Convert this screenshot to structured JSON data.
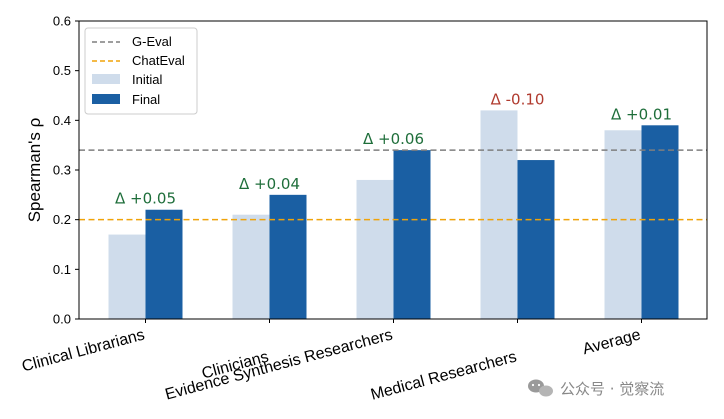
{
  "chart_data": {
    "type": "bar",
    "categories": [
      "Clinical Librarians",
      "Clinicians",
      "Evidence Synthesis Researchers",
      "Medical Researchers",
      "Average"
    ],
    "series": [
      {
        "name": "Initial",
        "values": [
          0.17,
          0.21,
          0.28,
          0.42,
          0.38
        ],
        "color": "#cfdceb"
      },
      {
        "name": "Final",
        "values": [
          0.22,
          0.25,
          0.34,
          0.32,
          0.39
        ],
        "color": "#1a5fa3"
      }
    ],
    "reference_lines": [
      {
        "name": "G-Eval",
        "value": 0.34,
        "color": "#7f7f7f",
        "style": "dashed"
      },
      {
        "name": "ChatEval",
        "value": 0.2,
        "color": "#f0a30a",
        "style": "dashed"
      }
    ],
    "annotations": [
      {
        "text": "Δ +0.05",
        "color": "#1e6e3a"
      },
      {
        "text": "Δ +0.04",
        "color": "#1e6e3a"
      },
      {
        "text": "Δ +0.06",
        "color": "#1e6e3a"
      },
      {
        "text": "Δ -0.10",
        "color": "#b03a2e"
      },
      {
        "text": "Δ +0.01",
        "color": "#1e6e3a"
      }
    ],
    "ylabel": "Spearman's ρ",
    "xlabel": "",
    "ylim": [
      0,
      0.6
    ],
    "yticks": [
      "0.0",
      "0.1",
      "0.2",
      "0.3",
      "0.4",
      "0.5",
      "0.6"
    ],
    "legend": {
      "position": "top-left",
      "entries": [
        "G-Eval",
        "ChatEval",
        "Initial",
        "Final"
      ]
    },
    "grid": false
  },
  "watermark": {
    "text": "公众号 · 觉察流",
    "icon": "wechat-icon"
  }
}
